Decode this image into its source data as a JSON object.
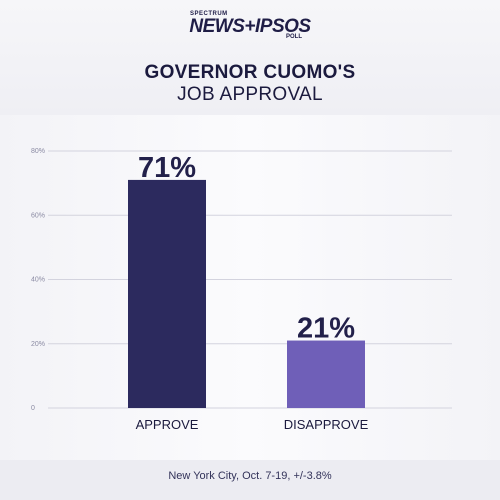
{
  "brand": {
    "top": "SPECTRUM",
    "main": "NEWS+IPSOS",
    "sub": "POLL"
  },
  "title_line1": "GOVERNOR CUOMO'S",
  "title_line2": "JOB APPROVAL",
  "footer": "New York City, Oct. 7-19, +/-3.8%",
  "chart_data": {
    "type": "bar",
    "title": "GOVERNOR CUOMO'S JOB APPROVAL",
    "categories": [
      "APPROVE",
      "DISAPPROVE"
    ],
    "values": [
      71,
      21
    ],
    "data_labels": [
      "71%",
      "21%"
    ],
    "colors": [
      "#2c2a5e",
      "#6f5fb8"
    ],
    "y_ticks": [
      0,
      20,
      40,
      60,
      80
    ],
    "y_tick_labels": [
      "0",
      "20%",
      "40%",
      "60%",
      "80%"
    ],
    "ylim": [
      0,
      80
    ],
    "grid": true,
    "legend": "none"
  }
}
